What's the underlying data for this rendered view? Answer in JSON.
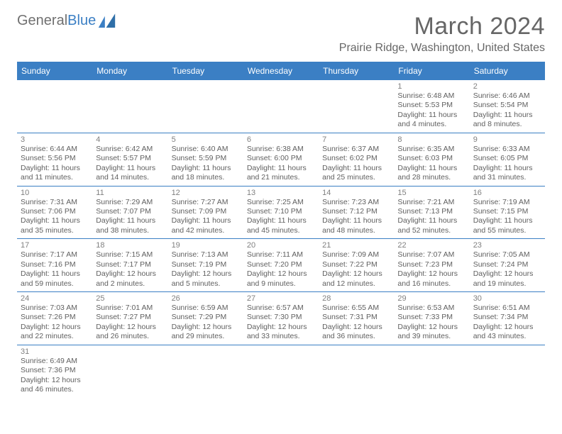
{
  "brand": {
    "name_part1": "General",
    "name_part2": "Blue"
  },
  "title": "March 2024",
  "location": "Prairie Ridge, Washington, United States",
  "colors": {
    "header_bg": "#3b7fc4",
    "header_text": "#ffffff",
    "page_bg": "#ffffff",
    "text": "#606060",
    "title_text": "#666666",
    "row_border": "#3b7fc4"
  },
  "typography": {
    "title_fontsize": 34,
    "subtitle_fontsize": 16,
    "header_fontsize": 12,
    "cell_fontsize": 10.5
  },
  "calendar": {
    "type": "table",
    "columns": [
      "Sunday",
      "Monday",
      "Tuesday",
      "Wednesday",
      "Thursday",
      "Friday",
      "Saturday"
    ],
    "weeks": [
      [
        null,
        null,
        null,
        null,
        null,
        {
          "d": "1",
          "sr": "6:48 AM",
          "ss": "5:53 PM",
          "dl": "11 hours and 4 minutes."
        },
        {
          "d": "2",
          "sr": "6:46 AM",
          "ss": "5:54 PM",
          "dl": "11 hours and 8 minutes."
        }
      ],
      [
        {
          "d": "3",
          "sr": "6:44 AM",
          "ss": "5:56 PM",
          "dl": "11 hours and 11 minutes."
        },
        {
          "d": "4",
          "sr": "6:42 AM",
          "ss": "5:57 PM",
          "dl": "11 hours and 14 minutes."
        },
        {
          "d": "5",
          "sr": "6:40 AM",
          "ss": "5:59 PM",
          "dl": "11 hours and 18 minutes."
        },
        {
          "d": "6",
          "sr": "6:38 AM",
          "ss": "6:00 PM",
          "dl": "11 hours and 21 minutes."
        },
        {
          "d": "7",
          "sr": "6:37 AM",
          "ss": "6:02 PM",
          "dl": "11 hours and 25 minutes."
        },
        {
          "d": "8",
          "sr": "6:35 AM",
          "ss": "6:03 PM",
          "dl": "11 hours and 28 minutes."
        },
        {
          "d": "9",
          "sr": "6:33 AM",
          "ss": "6:05 PM",
          "dl": "11 hours and 31 minutes."
        }
      ],
      [
        {
          "d": "10",
          "sr": "7:31 AM",
          "ss": "7:06 PM",
          "dl": "11 hours and 35 minutes."
        },
        {
          "d": "11",
          "sr": "7:29 AM",
          "ss": "7:07 PM",
          "dl": "11 hours and 38 minutes."
        },
        {
          "d": "12",
          "sr": "7:27 AM",
          "ss": "7:09 PM",
          "dl": "11 hours and 42 minutes."
        },
        {
          "d": "13",
          "sr": "7:25 AM",
          "ss": "7:10 PM",
          "dl": "11 hours and 45 minutes."
        },
        {
          "d": "14",
          "sr": "7:23 AM",
          "ss": "7:12 PM",
          "dl": "11 hours and 48 minutes."
        },
        {
          "d": "15",
          "sr": "7:21 AM",
          "ss": "7:13 PM",
          "dl": "11 hours and 52 minutes."
        },
        {
          "d": "16",
          "sr": "7:19 AM",
          "ss": "7:15 PM",
          "dl": "11 hours and 55 minutes."
        }
      ],
      [
        {
          "d": "17",
          "sr": "7:17 AM",
          "ss": "7:16 PM",
          "dl": "11 hours and 59 minutes."
        },
        {
          "d": "18",
          "sr": "7:15 AM",
          "ss": "7:17 PM",
          "dl": "12 hours and 2 minutes."
        },
        {
          "d": "19",
          "sr": "7:13 AM",
          "ss": "7:19 PM",
          "dl": "12 hours and 5 minutes."
        },
        {
          "d": "20",
          "sr": "7:11 AM",
          "ss": "7:20 PM",
          "dl": "12 hours and 9 minutes."
        },
        {
          "d": "21",
          "sr": "7:09 AM",
          "ss": "7:22 PM",
          "dl": "12 hours and 12 minutes."
        },
        {
          "d": "22",
          "sr": "7:07 AM",
          "ss": "7:23 PM",
          "dl": "12 hours and 16 minutes."
        },
        {
          "d": "23",
          "sr": "7:05 AM",
          "ss": "7:24 PM",
          "dl": "12 hours and 19 minutes."
        }
      ],
      [
        {
          "d": "24",
          "sr": "7:03 AM",
          "ss": "7:26 PM",
          "dl": "12 hours and 22 minutes."
        },
        {
          "d": "25",
          "sr": "7:01 AM",
          "ss": "7:27 PM",
          "dl": "12 hours and 26 minutes."
        },
        {
          "d": "26",
          "sr": "6:59 AM",
          "ss": "7:29 PM",
          "dl": "12 hours and 29 minutes."
        },
        {
          "d": "27",
          "sr": "6:57 AM",
          "ss": "7:30 PM",
          "dl": "12 hours and 33 minutes."
        },
        {
          "d": "28",
          "sr": "6:55 AM",
          "ss": "7:31 PM",
          "dl": "12 hours and 36 minutes."
        },
        {
          "d": "29",
          "sr": "6:53 AM",
          "ss": "7:33 PM",
          "dl": "12 hours and 39 minutes."
        },
        {
          "d": "30",
          "sr": "6:51 AM",
          "ss": "7:34 PM",
          "dl": "12 hours and 43 minutes."
        }
      ],
      [
        {
          "d": "31",
          "sr": "6:49 AM",
          "ss": "7:36 PM",
          "dl": "12 hours and 46 minutes."
        },
        null,
        null,
        null,
        null,
        null,
        null
      ]
    ],
    "labels": {
      "sunrise_prefix": "Sunrise: ",
      "sunset_prefix": "Sunset: ",
      "daylight_prefix": "Daylight: "
    }
  }
}
